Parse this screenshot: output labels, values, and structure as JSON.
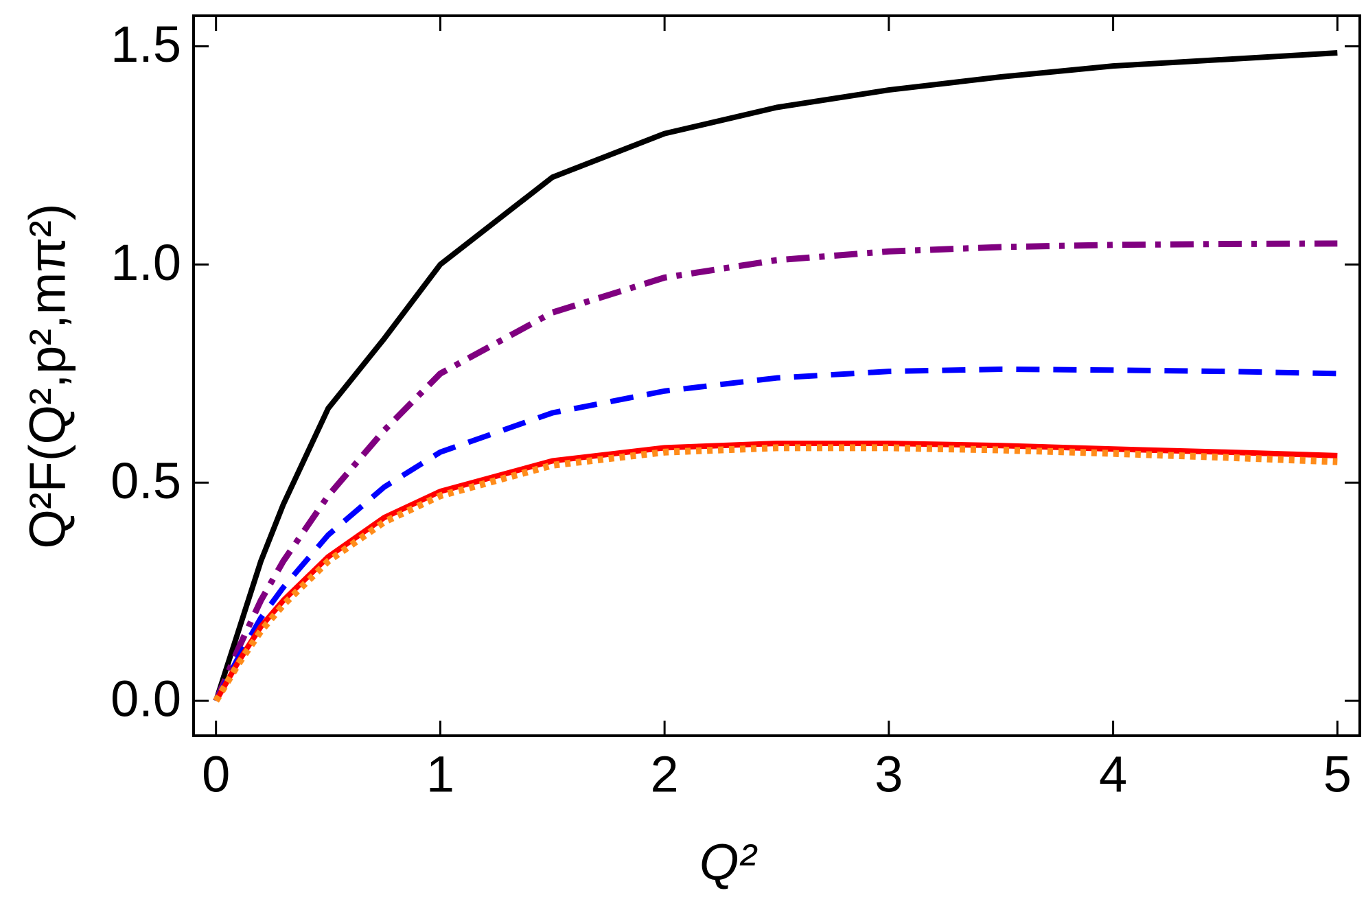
{
  "chart_data": {
    "type": "line",
    "xlabel": "Q²",
    "ylabel": "Q²F(Q²,p²,mπ²)",
    "x": [
      0,
      0.1,
      0.2,
      0.3,
      0.5,
      0.75,
      1,
      1.5,
      2,
      2.5,
      3,
      3.5,
      4,
      4.5,
      5
    ],
    "series": [
      {
        "color": "#000000",
        "style": "solid",
        "values": [
          0,
          0.16,
          0.32,
          0.45,
          0.67,
          0.83,
          1.0,
          1.2,
          1.3,
          1.36,
          1.4,
          1.43,
          1.455,
          1.47,
          1.485
        ]
      },
      {
        "color": "#800080",
        "style": "dashdot",
        "values": [
          0,
          0.12,
          0.23,
          0.32,
          0.47,
          0.62,
          0.75,
          0.89,
          0.97,
          1.01,
          1.03,
          1.04,
          1.045,
          1.047,
          1.048
        ]
      },
      {
        "color": "#0000ff",
        "style": "dashed",
        "values": [
          0,
          0.1,
          0.19,
          0.26,
          0.38,
          0.49,
          0.57,
          0.66,
          0.71,
          0.74,
          0.755,
          0.76,
          0.758,
          0.755,
          0.75
        ]
      },
      {
        "color": "#ff0000",
        "style": "solid",
        "values": [
          0,
          0.09,
          0.17,
          0.23,
          0.33,
          0.42,
          0.48,
          0.55,
          0.58,
          0.59,
          0.59,
          0.585,
          0.577,
          0.57,
          0.562
        ]
      },
      {
        "color": "#ff8c1a",
        "style": "dotted",
        "values": [
          0,
          0.085,
          0.16,
          0.22,
          0.32,
          0.41,
          0.47,
          0.54,
          0.57,
          0.58,
          0.58,
          0.575,
          0.567,
          0.558,
          0.548
        ]
      }
    ],
    "xlim": [
      -0.1,
      5.1
    ],
    "ylim": [
      -0.08,
      1.57
    ],
    "xticks": [
      0,
      1,
      2,
      3,
      4,
      5
    ],
    "yticks": [
      {
        "value": 0,
        "label": "0.0"
      },
      {
        "value": 0.5,
        "label": "0.5"
      },
      {
        "value": 1,
        "label": "1.0"
      },
      {
        "value": 1.5,
        "label": "1.5"
      }
    ],
    "grid": false
  }
}
